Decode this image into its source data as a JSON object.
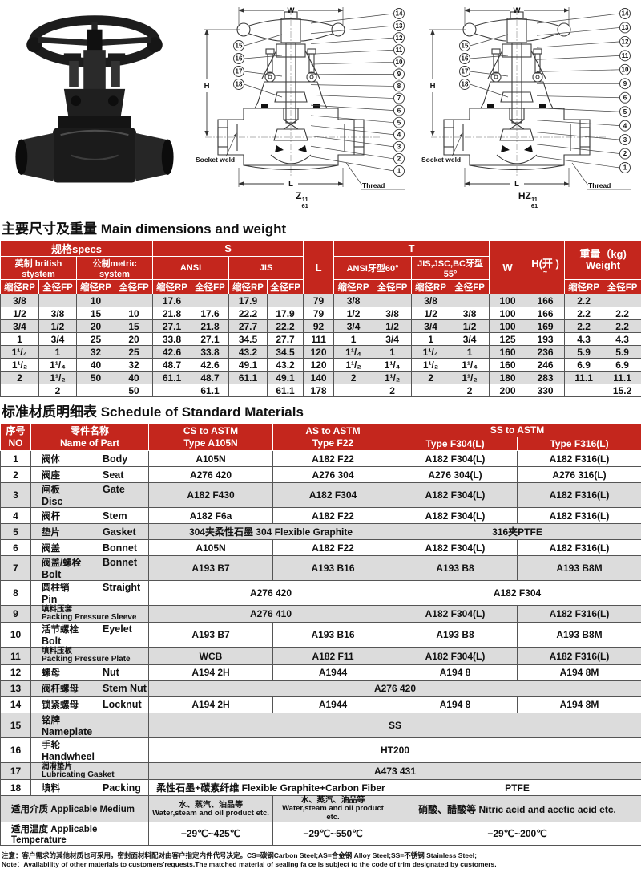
{
  "drawings": {
    "w_label": "W",
    "h_label": "H",
    "l_label": "L",
    "socket_weld_label": "Socket weld",
    "thread_label": "Thread",
    "middle": {
      "caption_base": "Z",
      "caption_sup": "11",
      "caption_sub": "61",
      "right_callouts": [
        "14",
        "13",
        "12",
        "11",
        "10",
        "9",
        "8",
        "7",
        "6",
        "5",
        "4",
        "3",
        "2",
        "1"
      ],
      "left_callouts": [
        "15",
        "16",
        "17",
        "18"
      ]
    },
    "right": {
      "caption_base": "HZ",
      "caption_sup": "11",
      "caption_sub": "61",
      "right_callouts": [
        "14",
        "13",
        "12",
        "11",
        "10",
        "9",
        "6",
        "5",
        "4",
        "3",
        "2",
        "1"
      ],
      "left_callouts": [
        "15",
        "16",
        "17",
        "18"
      ]
    }
  },
  "dimensions_table": {
    "title": "主要尺寸及重量 Main dimensions and weight",
    "headers": {
      "specs": "规格specs",
      "british": "英制 british stystem",
      "metric": "公制metric system",
      "s": "S",
      "ansi": "ANSI",
      "jis": "JIS",
      "l": "L",
      "t": "T",
      "t_ansi": "ANSI牙型60°",
      "t_jis": "JIS,JSC,BC牙型55°",
      "w": "W",
      "h_line1": "H(开 )",
      "h_line2": "~",
      "weight_line1": "重量（kg)",
      "weight_line2": "Weight",
      "rp": "缩径RP",
      "fp": "全径FP"
    },
    "rows": [
      [
        "3/8",
        "",
        "10",
        "",
        "17.6",
        "",
        "17.9",
        "",
        "79",
        "3/8",
        "",
        "3/8",
        "",
        "100",
        "166",
        "2.2",
        ""
      ],
      [
        "1/2",
        "3/8",
        "15",
        "10",
        "21.8",
        "17.6",
        "22.2",
        "17.9",
        "79",
        "1/2",
        "3/8",
        "1/2",
        "3/8",
        "100",
        "166",
        "2.2",
        "2.2"
      ],
      [
        "3/4",
        "1/2",
        "20",
        "15",
        "27.1",
        "21.8",
        "27.7",
        "22.2",
        "92",
        "3/4",
        "1/2",
        "3/4",
        "1/2",
        "100",
        "169",
        "2.2",
        "2.2"
      ],
      [
        "1",
        "3/4",
        "25",
        "20",
        "33.8",
        "27.1",
        "34.5",
        "27.7",
        "111",
        "1",
        "3/4",
        "1",
        "3/4",
        "125",
        "193",
        "4.3",
        "4.3"
      ],
      [
        "1¹/₄",
        "1",
        "32",
        "25",
        "42.6",
        "33.8",
        "43.2",
        "34.5",
        "120",
        "1¹/₄",
        "1",
        "1¹/₄",
        "1",
        "160",
        "236",
        "5.9",
        "5.9"
      ],
      [
        "1¹/₂",
        "1¹/₄",
        "40",
        "32",
        "48.7",
        "42.6",
        "49.1",
        "43.2",
        "120",
        "1¹/₂",
        "1¹/₄",
        "1¹/₂",
        "1¹/₄",
        "160",
        "246",
        "6.9",
        "6.9"
      ],
      [
        "2",
        "1¹/₂",
        "50",
        "40",
        "61.1",
        "48.7",
        "61.1",
        "49.1",
        "140",
        "2",
        "1¹/₂",
        "2",
        "1¹/₂",
        "180",
        "283",
        "11.1",
        "11.1"
      ],
      [
        "",
        "2",
        "",
        "50",
        "",
        "61.1",
        "",
        "61.1",
        "178",
        "",
        "2",
        "",
        "2",
        "200",
        "330",
        "",
        "15.2"
      ]
    ]
  },
  "materials_table": {
    "title": "标准材质明细表 Schedule of Standard Materials",
    "headers": {
      "no_cn": "序号",
      "no_en": "NO",
      "part_cn": "零件名称",
      "part_en": "Name of Part",
      "cs1": "CS to ASTM",
      "cs2": "Type A105N",
      "as1": "AS to ASTM",
      "as2": "Type F22",
      "ss": "SS to ASTM",
      "f304": "Type F304(L)",
      "f316": "Type F316(L)"
    },
    "rows": [
      {
        "no": "1",
        "cn": "阀体",
        "en": "Body",
        "cells": [
          {
            "t": "A105N"
          },
          {
            "t": "A182 F22"
          },
          {
            "t": "A182 F304(L)"
          },
          {
            "t": "A182 F316(L)"
          }
        ]
      },
      {
        "no": "2",
        "cn": "阀座",
        "en": "Seat",
        "cells": [
          {
            "t": "A276 420"
          },
          {
            "t": "A276 304"
          },
          {
            "t": "A276 304(L)"
          },
          {
            "t": "A276 316(L)"
          }
        ]
      },
      {
        "no": "3",
        "cn": "闸板",
        "en": "Gate Disc",
        "shade": true,
        "cells": [
          {
            "t": "A182 F430"
          },
          {
            "t": "A182 F304"
          },
          {
            "t": "A182 F304(L)"
          },
          {
            "t": "A182 F316(L)"
          }
        ]
      },
      {
        "no": "4",
        "cn": "阀杆",
        "en": "Stem",
        "cells": [
          {
            "t": "A182 F6a"
          },
          {
            "t": "A182 F22"
          },
          {
            "t": "A182 F304(L)"
          },
          {
            "t": "A182 F316(L)"
          }
        ]
      },
      {
        "no": "5",
        "cn": "垫片",
        "en": "Gasket",
        "shade": true,
        "cells": [
          {
            "t": "304夹柔性石墨  304 Flexible Graphite",
            "span": 2
          },
          {
            "t": "316夹PTFE",
            "span": 2
          }
        ]
      },
      {
        "no": "6",
        "cn": "阀盖",
        "en": "Bonnet",
        "cells": [
          {
            "t": "A105N"
          },
          {
            "t": "A182 F22"
          },
          {
            "t": "A182 F304(L)"
          },
          {
            "t": "A182 F316(L)"
          }
        ]
      },
      {
        "no": "7",
        "cn": "阀盖/螺栓",
        "en": "Bonnet Bolt",
        "shade": true,
        "cells": [
          {
            "t": "A193 B7"
          },
          {
            "t": "A193 B16"
          },
          {
            "t": "A193 B8"
          },
          {
            "t": "A193 B8M"
          }
        ]
      },
      {
        "no": "8",
        "cn": "圆柱销",
        "en": "Straight Pin",
        "cells": [
          {
            "t": "A276 420",
            "span": 2
          },
          {
            "t": "A182 F304",
            "span": 2
          }
        ]
      },
      {
        "no": "9",
        "cn": "填料压套",
        "en": "Packing Pressure Sleeve",
        "shade": true,
        "stacked": true,
        "cells": [
          {
            "t": "A276 410",
            "span": 2
          },
          {
            "t": "A182 F304(L)"
          },
          {
            "t": "A182 F316(L)"
          }
        ]
      },
      {
        "no": "10",
        "cn": "活节螺栓",
        "en": "Eyelet Bolt",
        "cells": [
          {
            "t": "A193 B7"
          },
          {
            "t": "A193 B16"
          },
          {
            "t": "A193 B8"
          },
          {
            "t": "A193 B8M"
          }
        ]
      },
      {
        "no": "11",
        "cn": "填料压板",
        "en": "Packing Pressure Plate",
        "shade": true,
        "stacked": true,
        "cells": [
          {
            "t": "WCB"
          },
          {
            "t": "A182 F11"
          },
          {
            "t": "A182 F304(L)"
          },
          {
            "t": "A182 F316(L)"
          }
        ]
      },
      {
        "no": "12",
        "cn": "螺母",
        "en": "Nut",
        "cells": [
          {
            "t": "A194 2H"
          },
          {
            "t": "A1944"
          },
          {
            "t": "A194 8"
          },
          {
            "t": "A194 8M"
          }
        ]
      },
      {
        "no": "13",
        "cn": "阀杆螺母",
        "en": "Stem Nut",
        "shade": true,
        "cells": [
          {
            "t": "A276 420",
            "span": 4
          }
        ]
      },
      {
        "no": "14",
        "cn": "锁紧螺母",
        "en": "Locknut",
        "cells": [
          {
            "t": "A194 2H"
          },
          {
            "t": "A1944"
          },
          {
            "t": "A194 8"
          },
          {
            "t": "A194 8M"
          }
        ]
      },
      {
        "no": "15",
        "cn": "铭牌",
        "en": "Nameplate",
        "shade": true,
        "cells": [
          {
            "t": "SS",
            "span": 4
          }
        ]
      },
      {
        "no": "16",
        "cn": "手轮",
        "en": "Handwheel",
        "cells": [
          {
            "t": "HT200",
            "span": 4
          }
        ]
      },
      {
        "no": "17",
        "cn": "润滑垫片",
        "en": "Lubricating Gasket",
        "shade": true,
        "stacked": true,
        "cells": [
          {
            "t": "A473 431",
            "span": 4
          }
        ]
      },
      {
        "no": "18",
        "cn": "填料",
        "en": "Packing",
        "cells": [
          {
            "t": "柔性石墨+碳素纤维 Flexible Graphite+Carbon Fiber",
            "span": 2
          },
          {
            "t": "PTFE",
            "span": 2
          }
        ]
      }
    ],
    "footer_rows": [
      {
        "label": "适用介质 Applicable Medium",
        "shade": true,
        "cells": [
          {
            "cn": "水、蒸汽、油品等",
            "en": "Water,steam and oil product etc."
          },
          {
            "cn": "水、蒸汽、油品等",
            "en": "Water,steam and oil product etc."
          },
          {
            "t": "硝酸、醋酸等 Nitric acid and acetic acid etc.",
            "span": 2
          }
        ]
      },
      {
        "label": "适用温度 Applicable Temperature",
        "cells": [
          {
            "t": "−29℃~425℃"
          },
          {
            "t": "−29℃~550℃"
          },
          {
            "t": "−29℃~200℃",
            "span": 2
          }
        ]
      }
    ]
  },
  "notes": {
    "line1": "注意：客户需求的其他材质也可采用。密封面材料配对由客户指定内件代号决定。CS=碳钢Carbon Steel;AS=合金钢 Alloy Steel;SS=不锈钢 Stainless Steel;",
    "line2": "Note：Availability of other materials to customers'requests.The matched material of sealing fa ce is subject to the code of trim designated by customers."
  },
  "colors": {
    "header_red": "#c4261d",
    "row_gray": "#dcdcdc"
  }
}
